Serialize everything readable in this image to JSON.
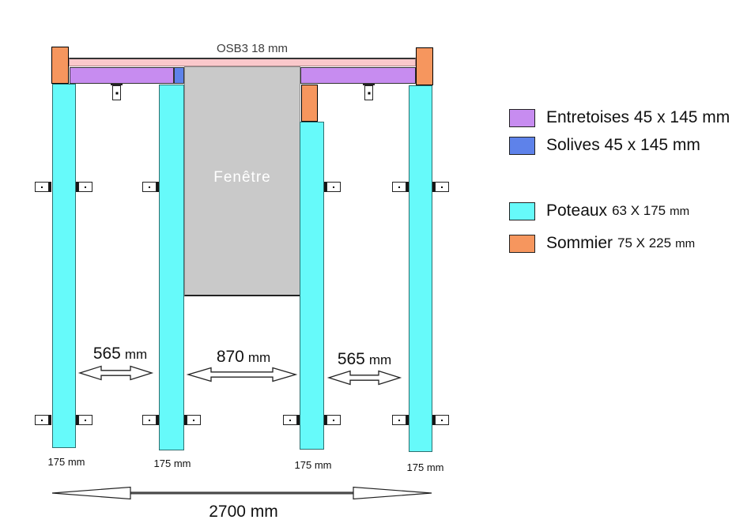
{
  "diagram": {
    "title": "OSB3 18 mm",
    "window_label": "Fenêtre",
    "post_width_labels": [
      "175 mm",
      "175 mm",
      "175 mm",
      "175 mm"
    ],
    "dimensions": {
      "left_bay": {
        "value": "565",
        "unit": "mm"
      },
      "center_bay": {
        "value": "870",
        "unit": "mm"
      },
      "right_bay": {
        "value": "565",
        "unit": "mm"
      },
      "total_width": "2700 mm"
    }
  },
  "legend": {
    "items": [
      {
        "name": "entretoises",
        "color": "#C78CF0",
        "label": "Entretoises 45 x 145 mm"
      },
      {
        "name": "solives",
        "color": "#5E82EA",
        "label": "Solives 45 x 145 mm"
      },
      {
        "name": "poteaux",
        "color": "#66FAFA",
        "label": "Poteaux",
        "size": "63 X 175",
        "unit": "mm"
      },
      {
        "name": "sommier",
        "color": "#F6965E",
        "label": "Sommier",
        "size": "75 X 225",
        "unit": "mm"
      }
    ]
  },
  "colors": {
    "osb_panel": "#FAC8CB",
    "entretoises": "#C78CF0",
    "solives": "#5E82EA",
    "poteaux": "#66FAFA",
    "sommier": "#F6965E",
    "window": "#C9C9C9"
  }
}
